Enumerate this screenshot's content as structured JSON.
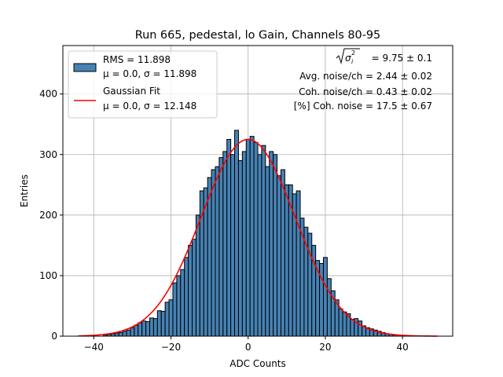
{
  "chart_data": {
    "type": "bar",
    "title": "Run 665, pedestal, lo Gain, Channels 80-95",
    "xlabel": "ADC Counts",
    "ylabel": "Entries",
    "xlim": [
      -48,
      53
    ],
    "ylim": [
      0,
      480
    ],
    "xticks": [
      -40,
      -20,
      0,
      20,
      40
    ],
    "yticks": [
      0,
      100,
      200,
      300,
      400
    ],
    "grid": true,
    "bar_color": "#4682b4",
    "fit_color": "#ff0000",
    "histogram": {
      "bin_width": 1,
      "bin_centers": [
        -37,
        -36,
        -35,
        -34,
        -33,
        -32,
        -31,
        -30,
        -29,
        -28,
        -27,
        -26,
        -25,
        -24,
        -23,
        -22,
        -21,
        -20,
        -19,
        -18,
        -17,
        -16,
        -15,
        -14,
        -13,
        -12,
        -11,
        -10,
        -9,
        -8,
        -7,
        -6,
        -5,
        -4,
        -3,
        -2,
        -1,
        0,
        1,
        2,
        3,
        4,
        5,
        6,
        7,
        8,
        9,
        10,
        11,
        12,
        13,
        14,
        15,
        16,
        17,
        18,
        19,
        20,
        21,
        22,
        23,
        24,
        25,
        26,
        27,
        28,
        29,
        30,
        31,
        32,
        33,
        34,
        35,
        36,
        37,
        38
      ],
      "counts": [
        2,
        3,
        4,
        5,
        6,
        8,
        10,
        14,
        18,
        22,
        25,
        24,
        30,
        29,
        42,
        41,
        56,
        60,
        88,
        100,
        110,
        130,
        150,
        160,
        200,
        240,
        245,
        262,
        275,
        280,
        295,
        305,
        325,
        300,
        340,
        290,
        305,
        325,
        330,
        320,
        300,
        315,
        280,
        305,
        300,
        265,
        275,
        250,
        250,
        235,
        240,
        195,
        180,
        170,
        150,
        125,
        120,
        130,
        95,
        75,
        60,
        45,
        40,
        37,
        28,
        29,
        25,
        17,
        14,
        12,
        10,
        8,
        6,
        4,
        3,
        2
      ]
    },
    "fit": {
      "name": "Gaussian Fit",
      "mu": 0.0,
      "sigma": 12.148,
      "amplitude": 325,
      "x_range": [
        -44,
        49
      ]
    },
    "legend": {
      "position": "top-left",
      "entries": [
        {
          "kind": "bar",
          "line1": "RMS = 11.898",
          "line2": "μ = 0.0, σ = 11.898"
        },
        {
          "kind": "line",
          "line1": "Gaussian Fit",
          "line2": "μ = 0.0, σ = 12.148"
        }
      ]
    },
    "annotations": {
      "sigma_i_value": "= 9.75 ± 0.1",
      "avg_noise": "Avg. noise/ch = 2.44 ± 0.02",
      "coh_noise": "Coh. noise/ch = 0.43 ± 0.02",
      "pct_coh_noise": "[%] Coh. noise = 17.5 ± 0.67"
    }
  }
}
